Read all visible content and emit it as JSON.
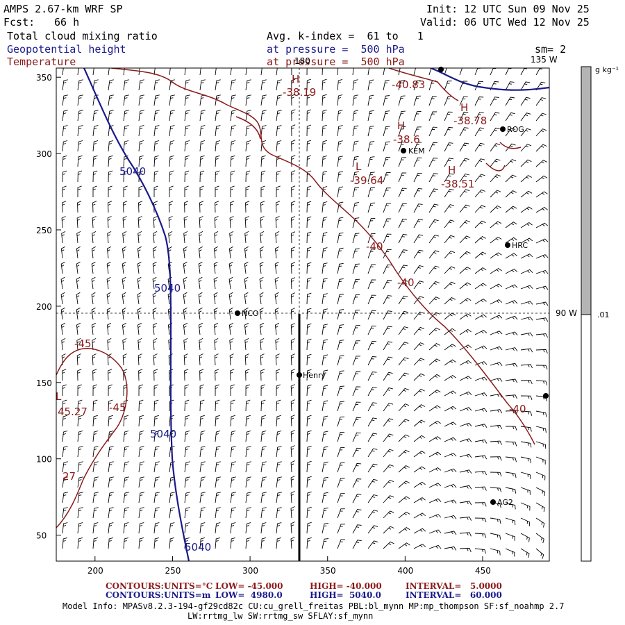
{
  "header": {
    "model": "AMPS 2.67-km WRF SP",
    "init": "Init: 12 UTC Sun 09 Nov 25",
    "fcst_label": "Fcst:",
    "fcst_value": "66 h",
    "valid": "Valid: 06 UTC Wed 12 Nov 25",
    "field1": "Total cloud mixing ratio",
    "field2": "Geopotential height",
    "field3": "Temperature",
    "kindex": "Avg. k-index =  61 to   1",
    "pressure1": "at pressure =  500 hPa",
    "pressure2": "at pressure =  500 hPa",
    "sm": "sm= 2"
  },
  "map": {
    "x_ticks": [
      "200",
      "250",
      "300",
      "350",
      "400",
      "450"
    ],
    "y_ticks": [
      "350",
      "300",
      "250",
      "200",
      "150",
      "100",
      "50"
    ],
    "meridian_labels": {
      "top": "180",
      "corner": "135 W",
      "right": "90 W"
    },
    "stations": [
      {
        "name": "ROG"
      },
      {
        "name": "KEM"
      },
      {
        "name": "HRC"
      },
      {
        "name": "NCO"
      },
      {
        "name": "Henry"
      },
      {
        "name": "AG2"
      }
    ],
    "extrema": [
      {
        "type": "H",
        "value": "-38.19"
      },
      {
        "type": "",
        "value": "-40.83"
      },
      {
        "type": "H",
        "value": "-38.78"
      },
      {
        "type": "H",
        "value": "-38.6"
      },
      {
        "type": "L",
        "value": "-39.64"
      },
      {
        "type": "H",
        "value": "-38.51"
      },
      {
        "type": "L",
        "value": "45.27"
      }
    ],
    "temp_labels": [
      "-40",
      "-40",
      "-40",
      "-45",
      "-45",
      "27"
    ],
    "height_labels": [
      "5040",
      "5040",
      "5040",
      "5040"
    ]
  },
  "colorbar": {
    "units": "g kg⁻¹",
    "level": ".01"
  },
  "footer": {
    "row1_label": "CONTOURS:",
    "row1_units": "UNITS=°C",
    "row1_low": "LOW= -45.000",
    "row1_high": "HIGH= -40.000",
    "row1_interval": "INTERVAL=   5.0000",
    "row2_label": "CONTOURS:",
    "row2_units": "UNITS=m",
    "row2_low": "LOW=  4980.0",
    "row2_high": "HIGH=  5040.0",
    "row2_interval": "INTERVAL=   60.000",
    "model_info": "Model Info: MPASv8.2.3-194-gf29cd82c CU:cu_grell_freitas PBL:bl_mynn MP:mp_thompson SF:sf_noahmp 2.7",
    "model_info2": "LW:rrtmg_lw SW:rrtmg_sw SFLAY:sf_mynn"
  },
  "colors": {
    "temperature": "#8b1a1a",
    "height": "#1a1a8c",
    "colorbar": "#b4b4b4"
  }
}
